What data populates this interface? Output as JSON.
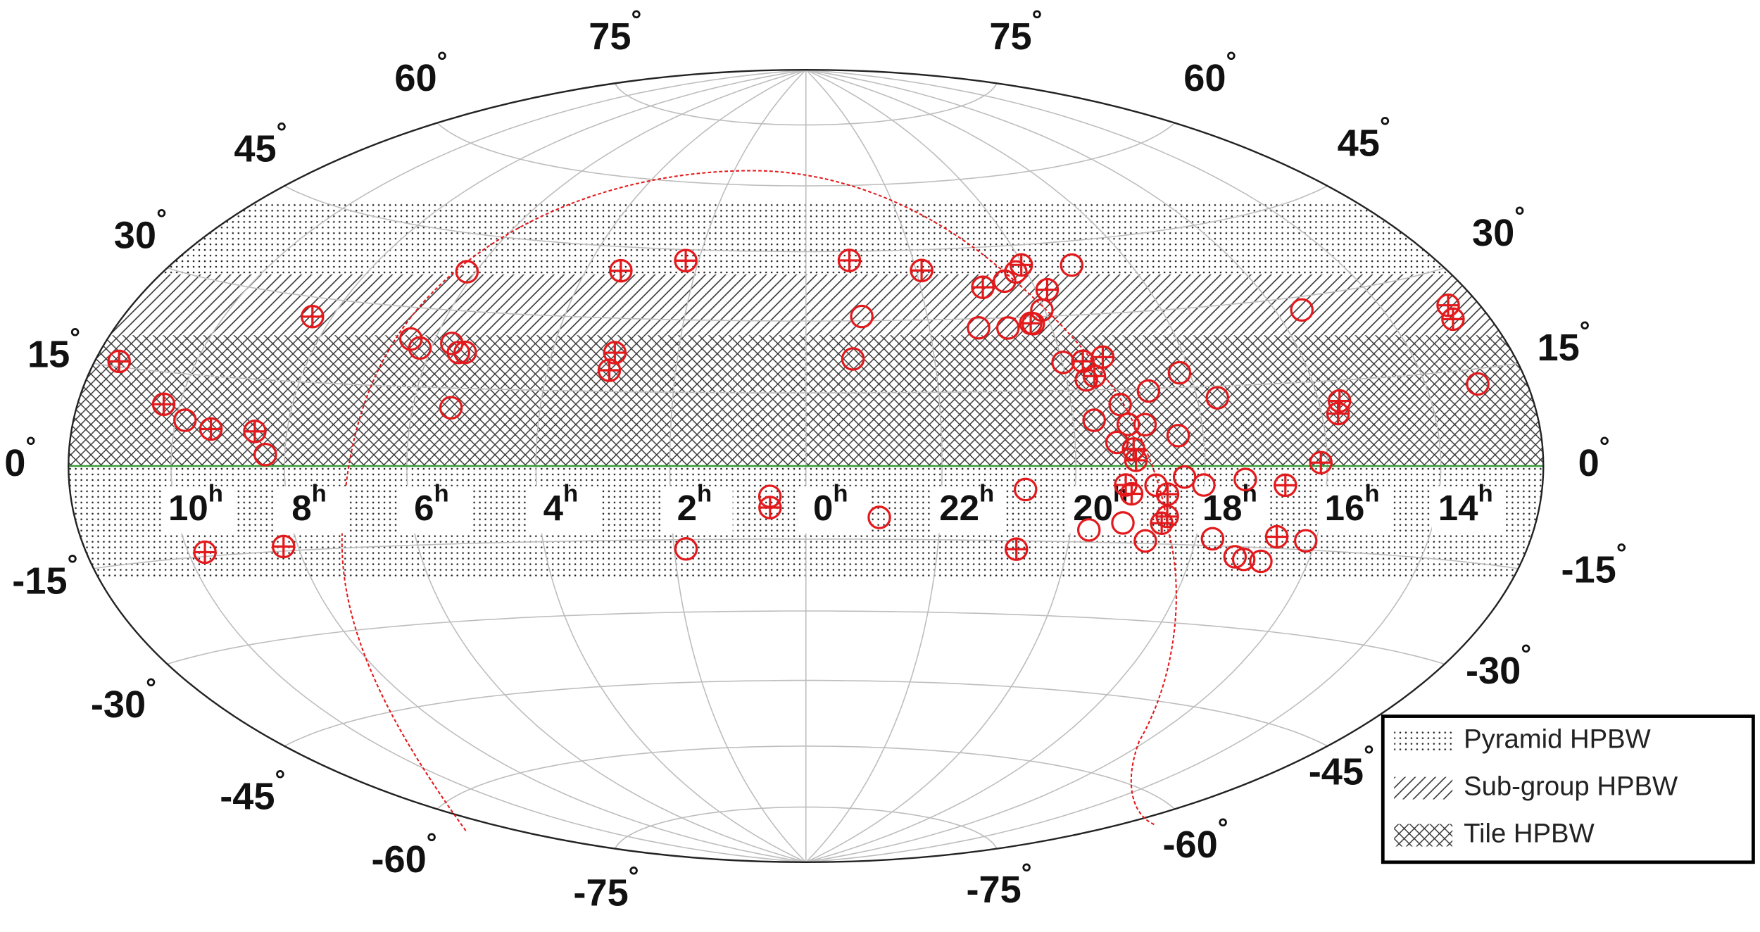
{
  "chart_data": {
    "type": "scatter",
    "projection": "hammer",
    "xticks": [
      {
        "value": 10,
        "label": "10h"
      },
      {
        "value": 8,
        "label": "8h"
      },
      {
        "value": 6,
        "label": "6h"
      },
      {
        "value": 4,
        "label": "4h"
      },
      {
        "value": 2,
        "label": "2h"
      },
      {
        "value": 0,
        "label": "0h"
      },
      {
        "value": 22,
        "label": "22h"
      },
      {
        "value": 20,
        "label": "20h"
      },
      {
        "value": 18,
        "label": "18h"
      },
      {
        "value": 16,
        "label": "16h"
      },
      {
        "value": 14,
        "label": "14h"
      }
    ],
    "yticks": [
      {
        "value": 75,
        "label": "75°"
      },
      {
        "value": 60,
        "label": "60°"
      },
      {
        "value": 45,
        "label": "45°"
      },
      {
        "value": 30,
        "label": "30°"
      },
      {
        "value": 15,
        "label": "15°"
      },
      {
        "value": 0,
        "label": "0°"
      },
      {
        "value": -15,
        "label": "-15°"
      },
      {
        "value": -30,
        "label": "-30°"
      },
      {
        "value": -45,
        "label": "-45°"
      },
      {
        "value": -60,
        "label": "-60°"
      },
      {
        "value": -75,
        "label": "-75°"
      }
    ],
    "bands": [
      {
        "name": "Pyramid HPBW",
        "pattern": "dots",
        "dec_range": [
          -23,
          56
        ]
      },
      {
        "name": "Sub-group HPBW",
        "pattern": "diagonal",
        "dec_range": [
          0,
          40
        ]
      },
      {
        "name": "Tile HPBW",
        "pattern": "crosshatch",
        "dec_range": [
          0,
          27
        ]
      }
    ],
    "legend": "lower right",
    "series": [
      {
        "marker": "circle-plus",
        "color": "#e3191c",
        "x": [
          11.5,
          10.3,
          9.33,
          8.55,
          8.36,
          9.69,
          8.25,
          3.36,
          3.0,
          3.03,
          2.24,
          0.53,
          23.19,
          21.9,
          20.91,
          20.03,
          19.8,
          20.32,
          20.79,
          19.67,
          19.33,
          19.55,
          19.11,
          19.08,
          19.23,
          19.13,
          18.57,
          18.53,
          18.6,
          16.68,
          16.69,
          16.11,
          15.64,
          15.72,
          12.65,
          12.77
        ],
        "values": [
          15.8,
          9.9,
          6.2,
          6.0,
          26.6,
          -14.3,
          -14.2,
          39.9,
          22.9,
          19.3,
          42.6,
          -8.5,
          43.0,
          40.5,
          36.5,
          40.8,
          35.4,
          28.7,
          -16.7,
          20.7,
          21.4,
          17.7,
          3.3,
          1.1,
          -3.7,
          -5.4,
          -5.4,
          -9.7,
          -11.0,
          -12.9,
          -3.5,
          0.6,
          11.4,
          9.2,
          24.9,
          22.8
        ]
      },
      {
        "marker": "circle",
        "color": "#e3191c",
        "x": [
          9.83,
          8.33,
          6.41,
          6.19,
          5.69,
          5.52,
          5.41,
          5.39,
          6.16,
          1.82,
          0.53,
          23.08,
          23.27,
          22.91,
          20.48,
          20.2,
          19.1,
          20.05,
          21.2,
          20.72,
          20.28,
          20.75,
          19.99,
          19.69,
          19.24,
          19.68,
          18.75,
          18.17,
          17.67,
          19.16,
          18.9,
          18.4,
          19.36,
          18.76,
          19.21,
          18.8,
          19.72,
          18.32,
          18.01,
          17.35,
          17.73,
          17.27,
          17.11,
          16.81,
          16.17,
          15.51,
          13.0
        ],
        "values": [
          7.5,
          2.0,
          24.0,
          22.4,
          23.6,
          21.9,
          22.0,
          11.2,
          37.6,
          -16.9,
          -6.2,
          30.9,
          22.0,
          -10.5,
          37.6,
          39.4,
          40.1,
          31.3,
          28.1,
          27.9,
          28.6,
          -4.7,
          20.6,
          17.0,
          12.0,
          9.0,
          14.5,
          17.8,
          12.8,
          8.1,
          8.0,
          5.8,
          4.6,
          -3.7,
          -11.1,
          -14.5,
          -12.6,
          -2.1,
          -3.6,
          -2.5,
          -13.7,
          -16.9,
          -17.3,
          -17.5,
          -13.4,
          27.7,
          12.7
        ]
      }
    ]
  }
}
